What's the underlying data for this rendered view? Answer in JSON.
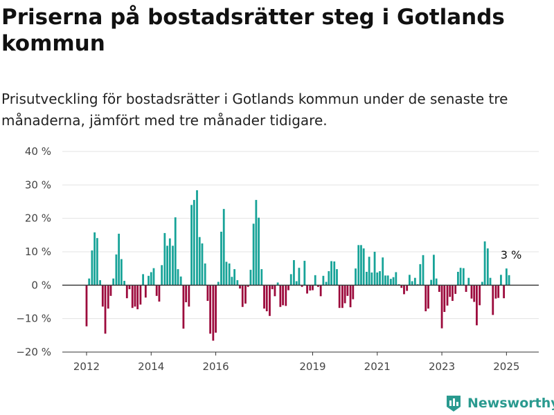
{
  "title": "Priserna på bostadsrätter steg i Gotlands kommun",
  "subtitle": "Prisutveckling för bostadsrätter i Gotlands kommun under de senaste tre månaderna, jämfört med tre månader tidigare.",
  "brand": "Newsworthy",
  "colors": {
    "positive": "#17a398",
    "negative": "#9c0a3c",
    "grid": "#e3e3e3",
    "axis": "#333333",
    "brand": "#2a9a8f"
  },
  "chart_data": {
    "type": "bar",
    "title": "Priserna på bostadsrätter steg i Gotlands kommun",
    "subtitle": "Prisutveckling för bostadsrätter i Gotlands kommun under de senaste tre månaderna, jämfört med tre månader tidigare.",
    "xlabel": "",
    "ylabel": "",
    "x_range": [
      2011.25,
      2026.0
    ],
    "ylim": [
      -20,
      40
    ],
    "y_ticks": [
      -20,
      -10,
      0,
      10,
      20,
      30,
      40
    ],
    "y_tick_labels": [
      "−20 %",
      "−10 %",
      "0 %",
      "10 %",
      "20 %",
      "30 %",
      "40 %"
    ],
    "x_ticks": [
      2012,
      2014,
      2016,
      2019,
      2021,
      2023,
      2025
    ],
    "x_tick_labels": [
      "2012",
      "2014",
      "2016",
      "2019",
      "2021",
      "2023",
      "2025"
    ],
    "grid": true,
    "legend": "none",
    "annotation": {
      "text": "3 %",
      "x": 2025.08
    },
    "series": [
      {
        "unit": "%",
        "x": [
          2012.0,
          2012.08,
          2012.17,
          2012.25,
          2012.33,
          2012.42,
          2012.5,
          2012.58,
          2012.67,
          2012.75,
          2012.83,
          2012.92,
          2013.0,
          2013.08,
          2013.17,
          2013.25,
          2013.33,
          2013.42,
          2013.5,
          2013.58,
          2013.67,
          2013.75,
          2013.83,
          2013.92,
          2014.0,
          2014.08,
          2014.17,
          2014.25,
          2014.33,
          2014.42,
          2014.5,
          2014.58,
          2014.67,
          2014.75,
          2014.83,
          2014.92,
          2015.0,
          2015.08,
          2015.17,
          2015.25,
          2015.33,
          2015.42,
          2015.5,
          2015.58,
          2015.67,
          2015.75,
          2015.83,
          2015.92,
          2016.0,
          2016.08,
          2016.17,
          2016.25,
          2016.33,
          2016.42,
          2016.5,
          2016.58,
          2016.67,
          2016.75,
          2016.83,
          2016.92,
          2017.0,
          2017.08,
          2017.17,
          2017.25,
          2017.33,
          2017.42,
          2017.5,
          2017.58,
          2017.67,
          2017.75,
          2017.83,
          2017.92,
          2018.0,
          2018.08,
          2018.17,
          2018.25,
          2018.33,
          2018.42,
          2018.5,
          2018.58,
          2018.67,
          2018.75,
          2018.83,
          2018.92,
          2019.0,
          2019.08,
          2019.17,
          2019.25,
          2019.33,
          2019.42,
          2019.5,
          2019.58,
          2019.67,
          2019.75,
          2019.83,
          2019.92,
          2020.0,
          2020.08,
          2020.17,
          2020.25,
          2020.33,
          2020.42,
          2020.5,
          2020.58,
          2020.67,
          2020.75,
          2020.83,
          2020.92,
          2021.0,
          2021.08,
          2021.17,
          2021.25,
          2021.33,
          2021.42,
          2021.5,
          2021.58,
          2021.67,
          2021.75,
          2021.83,
          2021.92,
          2022.0,
          2022.08,
          2022.17,
          2022.25,
          2022.33,
          2022.42,
          2022.5,
          2022.58,
          2022.67,
          2022.75,
          2022.83,
          2022.92,
          2023.0,
          2023.08,
          2023.17,
          2023.25,
          2023.33,
          2023.42,
          2023.5,
          2023.58,
          2023.67,
          2023.75,
          2023.83,
          2023.92,
          2024.0,
          2024.08,
          2024.17,
          2024.25,
          2024.33,
          2024.42,
          2024.5,
          2024.58,
          2024.67,
          2024.75,
          2024.83,
          2024.92,
          2025.0,
          2025.08
        ],
        "values": [
          -12.3,
          2.0,
          10.4,
          15.8,
          14.1,
          1.5,
          -6.4,
          -14.5,
          -7.0,
          -3.2,
          2.0,
          9.2,
          15.4,
          7.8,
          1.3,
          -3.9,
          -1.2,
          -6.8,
          -6.4,
          -7.2,
          -5.8,
          3.3,
          -3.7,
          2.8,
          3.9,
          5.1,
          -3.2,
          -4.9,
          6.0,
          15.6,
          11.8,
          14.0,
          11.8,
          20.3,
          4.8,
          2.6,
          -13.0,
          -5.1,
          -6.4,
          24.0,
          25.5,
          28.4,
          14.4,
          12.5,
          6.5,
          -4.7,
          -14.5,
          -16.6,
          -14.2,
          1.0,
          16.0,
          22.8,
          7.0,
          6.5,
          2.5,
          4.8,
          1.5,
          -1.0,
          -6.5,
          -5.5,
          -0.5,
          4.6,
          18.4,
          25.5,
          20.2,
          4.8,
          -7.0,
          -7.8,
          -9.2,
          -1.2,
          -3.3,
          0.8,
          -6.5,
          -6.0,
          -6.2,
          -1.5,
          3.3,
          7.5,
          1.2,
          5.2,
          -0.5,
          7.3,
          -2.5,
          -1.6,
          -1.5,
          3.0,
          -0.5,
          -3.3,
          2.8,
          1.0,
          4.2,
          7.2,
          7.1,
          4.8,
          -6.8,
          -6.8,
          -5.4,
          -3.2,
          -6.6,
          -4.2,
          5.0,
          12.0,
          12.0,
          11.0,
          4.0,
          8.5,
          3.8,
          10.0,
          3.8,
          4.2,
          8.3,
          2.9,
          2.9,
          1.9,
          2.4,
          3.9,
          0.3,
          -0.8,
          -2.7,
          -1.7,
          3.1,
          1.2,
          2.2,
          0.3,
          6.3,
          9.0,
          -7.8,
          -7.0,
          1.6,
          9.1,
          2.0,
          -2.0,
          -12.9,
          -8.0,
          -6.1,
          -3.5,
          -4.7,
          -2.6,
          4.0,
          5.2,
          5.1,
          -2.0,
          2.2,
          -4.0,
          -5.0,
          -12.0,
          -6.0,
          1.0,
          13.1,
          11.0,
          2.2,
          -8.9,
          -4.0,
          -3.8,
          3.1,
          -3.9,
          5.0,
          3.0
        ]
      }
    ]
  }
}
